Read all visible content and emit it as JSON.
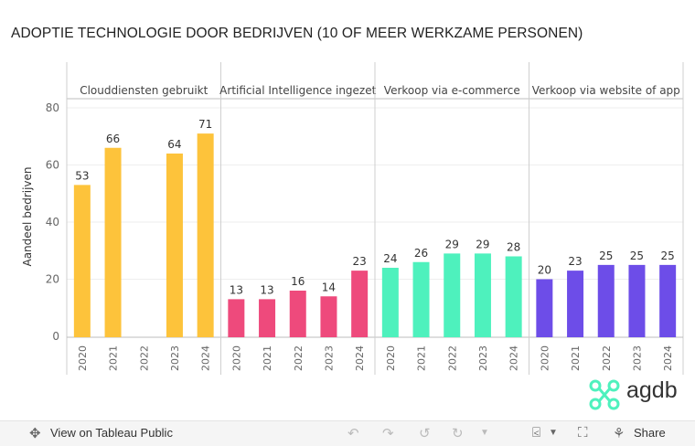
{
  "chart_data": {
    "type": "bar",
    "title": "ADOPTIE TECHNOLOGIE DOOR BEDRIJVEN (10 OF MEER WERKZAME PERSONEN)",
    "ylabel": "Aandeel bedrijven",
    "ylim": [
      0,
      95
    ],
    "yticks": [
      0,
      20,
      40,
      60,
      80
    ],
    "categories": [
      "2020",
      "2021",
      "2022",
      "2023",
      "2024"
    ],
    "panels": [
      {
        "name": "Clouddiensten gebruikt",
        "color": "#fdc33b",
        "values": [
          53,
          66,
          null,
          64,
          71
        ]
      },
      {
        "name": "Artificial Intelligence ingezet",
        "color": "#ee4a7c",
        "values": [
          13,
          13,
          16,
          14,
          23
        ]
      },
      {
        "name": "Verkoop via e-commerce",
        "color": "#4ef1bd",
        "values": [
          24,
          26,
          29,
          29,
          28
        ]
      },
      {
        "name": "Verkoop via website of app",
        "color": "#6d4de8",
        "values": [
          20,
          23,
          25,
          25,
          25
        ]
      }
    ]
  },
  "logo": {
    "text": "agdb",
    "color": "#4ef1bd"
  },
  "toolbar": {
    "view_label": "View on Tableau Public",
    "share_label": "Share",
    "undo_icon": "undo-icon",
    "redo_icon": "redo-icon",
    "revert_icon": "revert-icon",
    "refresh_icon": "refresh-icon",
    "download_icon": "download-icon",
    "fullscreen_icon": "fullscreen-icon",
    "share_icon": "share-icon"
  }
}
